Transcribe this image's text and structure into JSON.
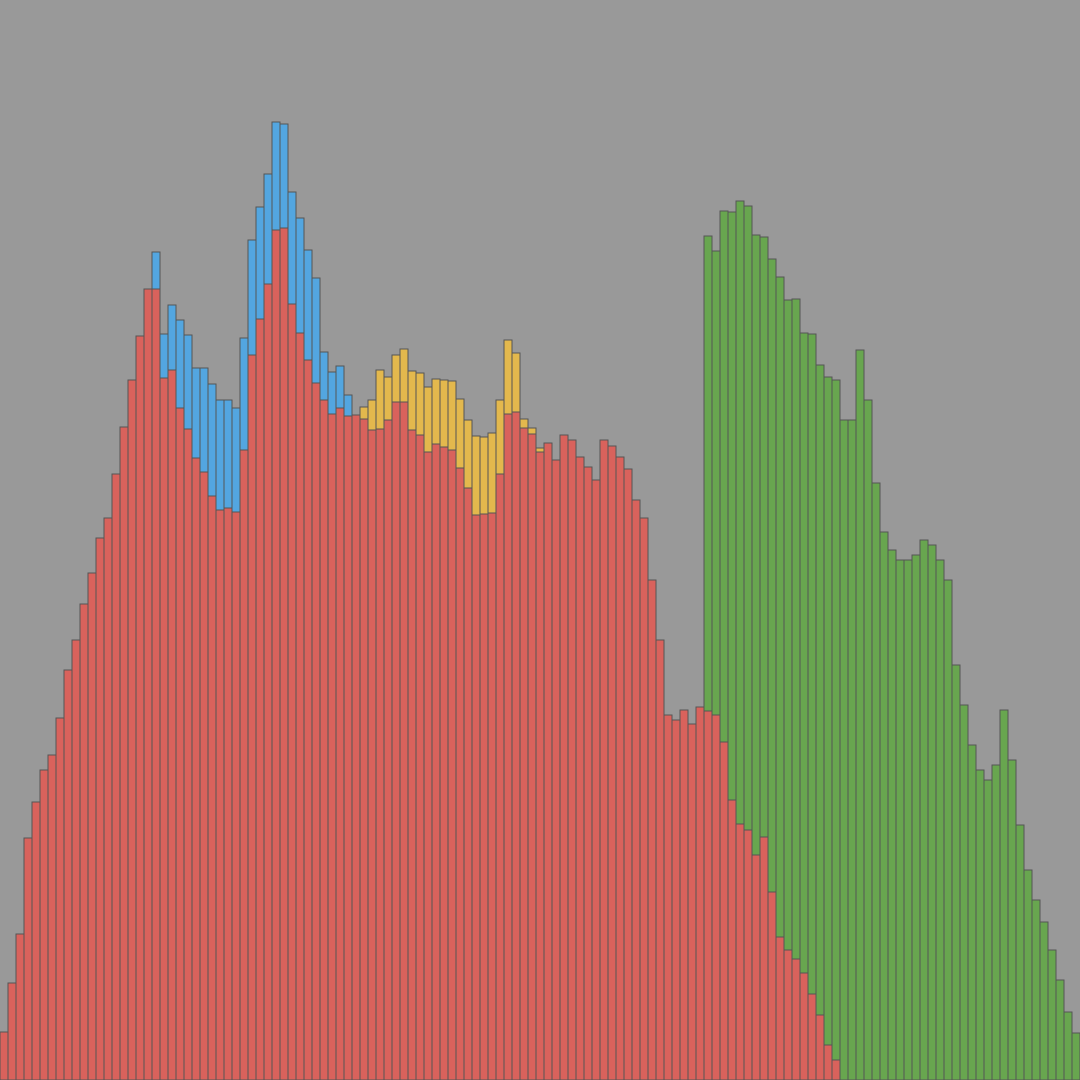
{
  "chart_data": {
    "type": "bar",
    "stacked": true,
    "bins": 135,
    "ylim": [
      0,
      1080
    ],
    "grid": false,
    "legend": "none",
    "background": "#999999",
    "outline_color": "#555555",
    "series": [
      {
        "color": "#d9625c",
        "values": [
          48,
          97,
          146,
          242,
          278,
          310,
          325,
          362,
          410,
          440,
          476,
          507,
          542,
          562,
          606,
          653,
          700,
          744,
          791,
          791,
          702,
          710,
          672,
          651,
          622,
          608,
          584,
          570,
          572,
          568,
          630,
          725,
          761,
          796,
          850,
          852,
          776,
          747,
          720,
          697,
          680,
          666,
          672,
          664,
          665,
          661,
          650,
          651,
          660,
          678,
          678,
          650,
          645,
          628,
          636,
          633,
          630,
          612,
          592,
          565,
          566,
          567,
          606,
          666,
          668,
          652,
          646,
          628,
          637,
          620,
          645,
          640,
          623,
          613,
          600,
          640,
          634,
          623,
          611,
          580,
          562,
          500,
          440,
          365,
          360,
          370,
          356,
          373,
          369,
          365,
          338,
          280,
          256,
          250,
          225,
          243,
          188,
          143,
          130,
          121,
          107,
          86,
          65,
          35,
          20,
          0,
          0,
          0,
          0,
          0,
          0,
          0,
          0,
          0,
          0,
          0,
          0,
          0,
          0,
          0,
          0,
          0,
          0,
          0,
          0,
          0,
          0,
          0,
          0,
          0,
          0,
          0,
          0,
          0,
          0
        ]
      },
      {
        "color": "#53a6e0",
        "values": [
          0,
          0,
          0,
          0,
          0,
          0,
          0,
          0,
          0,
          0,
          0,
          0,
          0,
          0,
          0,
          0,
          0,
          0,
          0,
          37,
          44,
          65,
          88,
          94,
          90,
          104,
          112,
          110,
          108,
          104,
          112,
          115,
          112,
          110,
          108,
          104,
          112,
          115,
          110,
          105,
          48,
          42,
          42,
          21,
          0,
          0,
          0,
          0,
          0,
          0,
          0,
          0,
          0,
          0,
          0,
          0,
          0,
          0,
          0,
          0,
          0,
          0,
          0,
          0,
          0,
          0,
          0,
          0,
          0,
          0,
          0,
          0,
          0,
          0,
          0,
          0,
          0,
          0,
          0,
          0,
          0,
          0,
          0,
          0,
          0,
          0,
          0,
          0,
          0,
          0,
          0,
          0,
          0,
          0,
          0,
          0,
          0,
          0,
          0,
          0,
          0,
          0,
          0,
          0,
          0,
          0,
          0,
          0,
          0,
          0,
          0,
          0,
          0,
          0,
          0,
          0,
          0,
          0,
          0,
          0,
          0,
          0,
          0,
          0,
          0,
          0,
          0,
          0,
          0,
          0,
          0,
          0,
          0,
          0,
          0
        ]
      },
      {
        "color": "#e3b84d",
        "values": [
          0,
          0,
          0,
          0,
          0,
          0,
          0,
          0,
          0,
          0,
          0,
          0,
          0,
          0,
          0,
          0,
          0,
          0,
          0,
          0,
          0,
          0,
          0,
          0,
          0,
          0,
          0,
          0,
          0,
          0,
          0,
          0,
          0,
          0,
          0,
          0,
          0,
          0,
          0,
          0,
          0,
          0,
          0,
          0,
          0,
          12,
          30,
          59,
          43,
          47,
          53,
          59,
          62,
          65,
          65,
          67,
          69,
          69,
          68,
          79,
          77,
          80,
          74,
          74,
          59,
          9,
          6,
          4,
          0,
          0,
          0,
          0,
          0,
          0,
          0,
          0,
          0,
          0,
          0,
          0,
          0,
          0,
          0,
          0,
          0,
          0,
          0,
          0,
          0,
          0,
          0,
          0,
          0,
          0,
          0,
          0,
          0,
          0,
          0,
          0,
          0,
          0,
          0,
          0,
          0,
          0,
          0,
          0,
          0,
          0,
          0,
          0,
          0,
          0,
          0,
          0,
          0,
          0,
          0,
          0,
          0,
          0,
          0,
          0,
          0,
          0,
          0,
          0,
          0,
          0,
          0,
          0,
          0,
          0,
          0
        ]
      },
      {
        "color": "#68a64f",
        "values": [
          0,
          0,
          0,
          0,
          0,
          0,
          0,
          0,
          0,
          0,
          0,
          0,
          0,
          0,
          0,
          0,
          0,
          0,
          0,
          0,
          0,
          0,
          0,
          0,
          0,
          0,
          0,
          0,
          0,
          0,
          0,
          0,
          0,
          0,
          0,
          0,
          0,
          0,
          0,
          0,
          0,
          0,
          0,
          0,
          0,
          0,
          0,
          0,
          0,
          0,
          0,
          0,
          0,
          0,
          0,
          0,
          0,
          0,
          0,
          0,
          0,
          0,
          0,
          0,
          0,
          0,
          0,
          0,
          0,
          0,
          0,
          0,
          0,
          0,
          0,
          0,
          0,
          0,
          0,
          0,
          0,
          0,
          0,
          0,
          0,
          0,
          0,
          0,
          475,
          464,
          531,
          588,
          623,
          624,
          620,
          600,
          633,
          660,
          650,
          660,
          640,
          660,
          650,
          668,
          680,
          660,
          660,
          730,
          680,
          597,
          548,
          530,
          520,
          520,
          525,
          540,
          535,
          520,
          500,
          415,
          375,
          335,
          310,
          300,
          315,
          370,
          320,
          255,
          210,
          180,
          158,
          130,
          100,
          68,
          47,
          29
        ]
      }
    ]
  }
}
